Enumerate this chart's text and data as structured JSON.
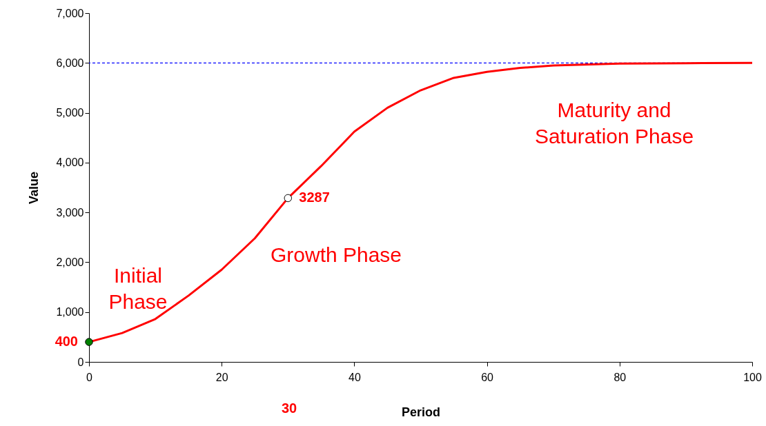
{
  "chart_data": {
    "type": "line",
    "xlabel": "Period",
    "ylabel": "Value",
    "xlim": [
      0,
      100
    ],
    "xticks": [
      0,
      20,
      40,
      60,
      80,
      100
    ],
    "ylim": [
      0,
      7000
    ],
    "yticks": [
      0,
      {
        "value": 1000,
        "label": "1,000"
      },
      {
        "value": 2000,
        "label": "2,000"
      },
      {
        "value": 3000,
        "label": "3,000"
      },
      {
        "value": 4000,
        "label": "4,000"
      },
      {
        "value": 5000,
        "label": "5,000"
      },
      {
        "value": 6000,
        "label": "6,000"
      },
      {
        "value": 7000,
        "label": "7,000"
      }
    ],
    "grid": false,
    "marker": "none",
    "line_style": "solid",
    "series": [
      {
        "color": "#ff0000",
        "x": [
          0,
          5,
          10,
          15,
          20,
          25,
          30,
          35,
          40,
          45,
          50,
          55,
          60,
          65,
          70,
          80,
          90,
          100
        ],
        "values": [
          400,
          580,
          860,
          1330,
          1850,
          2480,
          3287,
          3930,
          4620,
          5100,
          5450,
          5700,
          5820,
          5900,
          5950,
          5985,
          5995,
          6000
        ]
      },
      {
        "type": "scatter",
        "color": "#008000",
        "marker": "circle",
        "x": [
          0
        ],
        "values": [
          400
        ]
      },
      {
        "type": "scatter",
        "color": "#ffffff",
        "marker": "circle",
        "x": [
          30
        ],
        "values": [
          3287
        ]
      }
    ],
    "ref_lines": [
      {
        "axis": "y",
        "value": 6000,
        "color": "#0000ff",
        "line_style": "dashed"
      }
    ],
    "annotations": [
      {
        "text": "400",
        "x": 0,
        "y": 400
      },
      "30",
      {
        "text": "3287",
        "x": 30,
        "y": 3287
      },
      "Initial\nPhase",
      "Growth Phase",
      "Maturity and\nSaturation Phase"
    ]
  }
}
